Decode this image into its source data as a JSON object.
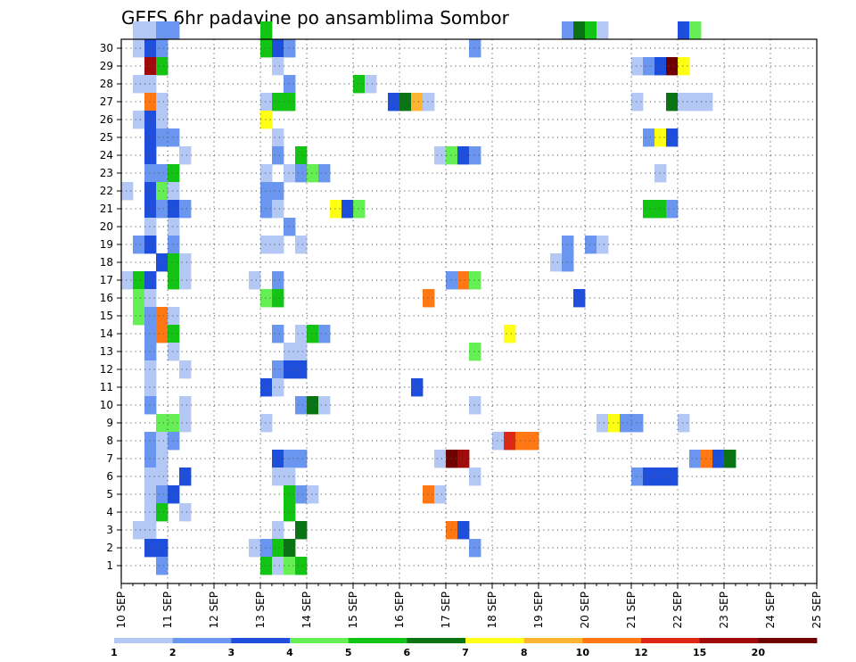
{
  "chart_data": {
    "type": "heatmap",
    "title": "GEFS 6hr padavine po ansamblima Sombor",
    "xlabel": "",
    "ylabel": "",
    "x_ticks": [
      "10 SEP",
      "11 SEP",
      "12 SEP",
      "13 SEP",
      "14 SEP",
      "15 SEP",
      "16 SEP",
      "17 SEP",
      "18 SEP",
      "19 SEP",
      "20 SEP",
      "21 SEP",
      "22 SEP",
      "23 SEP",
      "24 SEP",
      "25 SEP"
    ],
    "y_ticks": [
      1,
      2,
      3,
      4,
      5,
      6,
      7,
      8,
      9,
      10,
      11,
      12,
      13,
      14,
      15,
      16,
      17,
      18,
      19,
      20,
      21,
      22,
      23,
      24,
      25,
      26,
      27,
      28,
      29,
      30
    ],
    "time_step_hours": 6,
    "grid": true,
    "colorbar": {
      "labels": [
        "1",
        "2",
        "3",
        "4",
        "5",
        "6",
        "7",
        "8",
        "10",
        "12",
        "15",
        "20"
      ],
      "colors": [
        "#b4c8f5",
        "#6a96f0",
        "#1e4fdc",
        "#66ee55",
        "#14c414",
        "#0a7314",
        "#ffff14",
        "#ffb432",
        "#ff7814",
        "#dc2814",
        "#a00a0a",
        "#6e0000"
      ]
    },
    "cells": [
      [
        30,
        1,
        0
      ],
      [
        30,
        2,
        0
      ],
      [
        30,
        3,
        1
      ],
      [
        30,
        4,
        1
      ],
      [
        30,
        12,
        4
      ],
      [
        30,
        38,
        1
      ],
      [
        30,
        39,
        5
      ],
      [
        30,
        40,
        4
      ],
      [
        30,
        41,
        0
      ],
      [
        30,
        48,
        2
      ],
      [
        30,
        49,
        3
      ],
      [
        29,
        1,
        0
      ],
      [
        29,
        2,
        2
      ],
      [
        29,
        3,
        1
      ],
      [
        29,
        12,
        4
      ],
      [
        29,
        13,
        2
      ],
      [
        29,
        14,
        1
      ],
      [
        29,
        30,
        1
      ],
      [
        28,
        2,
        10
      ],
      [
        28,
        3,
        4
      ],
      [
        28,
        13,
        0
      ],
      [
        28,
        44,
        0
      ],
      [
        28,
        45,
        1
      ],
      [
        28,
        46,
        2
      ],
      [
        28,
        47,
        11
      ],
      [
        28,
        48,
        6
      ],
      [
        27,
        1,
        0
      ],
      [
        27,
        2,
        0
      ],
      [
        27,
        14,
        1
      ],
      [
        27,
        20,
        4
      ],
      [
        27,
        21,
        0
      ],
      [
        26,
        2,
        8
      ],
      [
        26,
        3,
        0
      ],
      [
        26,
        12,
        0
      ],
      [
        26,
        13,
        4
      ],
      [
        26,
        14,
        4
      ],
      [
        26,
        23,
        2
      ],
      [
        26,
        24,
        5
      ],
      [
        26,
        25,
        7
      ],
      [
        26,
        26,
        0
      ],
      [
        26,
        44,
        0
      ],
      [
        26,
        47,
        5
      ],
      [
        26,
        48,
        0
      ],
      [
        26,
        49,
        0
      ],
      [
        26,
        50,
        0
      ],
      [
        25,
        1,
        0
      ],
      [
        25,
        2,
        2
      ],
      [
        25,
        3,
        0
      ],
      [
        25,
        12,
        6
      ],
      [
        24,
        2,
        2
      ],
      [
        24,
        3,
        1
      ],
      [
        24,
        4,
        1
      ],
      [
        24,
        13,
        0
      ],
      [
        24,
        45,
        1
      ],
      [
        24,
        46,
        6
      ],
      [
        24,
        47,
        2
      ],
      [
        23,
        2,
        2
      ],
      [
        23,
        5,
        0
      ],
      [
        23,
        13,
        1
      ],
      [
        23,
        15,
        4
      ],
      [
        23,
        27,
        0
      ],
      [
        23,
        28,
        3
      ],
      [
        23,
        29,
        2
      ],
      [
        23,
        30,
        1
      ],
      [
        22,
        2,
        1
      ],
      [
        22,
        3,
        1
      ],
      [
        22,
        4,
        4
      ],
      [
        22,
        12,
        0
      ],
      [
        22,
        14,
        0
      ],
      [
        22,
        15,
        1
      ],
      [
        22,
        16,
        3
      ],
      [
        22,
        17,
        1
      ],
      [
        22,
        46,
        0
      ],
      [
        21,
        0,
        0
      ],
      [
        21,
        2,
        2
      ],
      [
        21,
        3,
        3
      ],
      [
        21,
        4,
        0
      ],
      [
        21,
        12,
        1
      ],
      [
        21,
        13,
        1
      ],
      [
        20,
        2,
        2
      ],
      [
        20,
        3,
        1
      ],
      [
        20,
        4,
        2
      ],
      [
        20,
        5,
        1
      ],
      [
        20,
        12,
        1
      ],
      [
        20,
        13,
        0
      ],
      [
        20,
        18,
        6
      ],
      [
        20,
        19,
        2
      ],
      [
        20,
        20,
        3
      ],
      [
        20,
        45,
        4
      ],
      [
        20,
        46,
        4
      ],
      [
        20,
        47,
        1
      ],
      [
        19,
        2,
        0
      ],
      [
        19,
        4,
        0
      ],
      [
        19,
        14,
        1
      ],
      [
        18,
        1,
        1
      ],
      [
        18,
        2,
        2
      ],
      [
        18,
        4,
        1
      ],
      [
        18,
        12,
        0
      ],
      [
        18,
        13,
        0
      ],
      [
        18,
        15,
        0
      ],
      [
        18,
        38,
        1
      ],
      [
        18,
        40,
        1
      ],
      [
        18,
        41,
        0
      ],
      [
        17,
        3,
        2
      ],
      [
        17,
        4,
        4
      ],
      [
        17,
        5,
        0
      ],
      [
        17,
        37,
        0
      ],
      [
        17,
        38,
        1
      ],
      [
        16,
        0,
        0
      ],
      [
        16,
        1,
        4
      ],
      [
        16,
        2,
        2
      ],
      [
        16,
        4,
        4
      ],
      [
        16,
        5,
        0
      ],
      [
        16,
        11,
        0
      ],
      [
        16,
        13,
        1
      ],
      [
        16,
        28,
        1
      ],
      [
        16,
        29,
        8
      ],
      [
        16,
        30,
        3
      ],
      [
        15,
        1,
        3
      ],
      [
        15,
        2,
        0
      ],
      [
        15,
        12,
        3
      ],
      [
        15,
        13,
        4
      ],
      [
        15,
        26,
        8
      ],
      [
        15,
        39,
        2
      ],
      [
        14,
        1,
        3
      ],
      [
        14,
        2,
        1
      ],
      [
        14,
        3,
        8
      ],
      [
        14,
        4,
        0
      ],
      [
        13,
        2,
        1
      ],
      [
        13,
        3,
        8
      ],
      [
        13,
        4,
        4
      ],
      [
        13,
        13,
        1
      ],
      [
        13,
        15,
        0
      ],
      [
        13,
        16,
        4
      ],
      [
        13,
        17,
        1
      ],
      [
        13,
        33,
        6
      ],
      [
        12,
        2,
        1
      ],
      [
        12,
        4,
        0
      ],
      [
        12,
        14,
        0
      ],
      [
        12,
        15,
        0
      ],
      [
        12,
        30,
        3
      ],
      [
        11,
        2,
        0
      ],
      [
        11,
        5,
        0
      ],
      [
        11,
        13,
        1
      ],
      [
        11,
        14,
        2
      ],
      [
        11,
        15,
        2
      ],
      [
        10,
        2,
        0
      ],
      [
        10,
        12,
        2
      ],
      [
        10,
        13,
        0
      ],
      [
        10,
        25,
        2
      ],
      [
        9,
        2,
        1
      ],
      [
        9,
        5,
        0
      ],
      [
        9,
        15,
        1
      ],
      [
        9,
        16,
        5
      ],
      [
        9,
        17,
        0
      ],
      [
        9,
        30,
        0
      ],
      [
        8,
        3,
        3
      ],
      [
        8,
        4,
        3
      ],
      [
        8,
        5,
        0
      ],
      [
        8,
        12,
        0
      ],
      [
        8,
        41,
        0
      ],
      [
        8,
        42,
        6
      ],
      [
        8,
        43,
        1
      ],
      [
        8,
        44,
        1
      ],
      [
        8,
        48,
        0
      ],
      [
        7,
        2,
        1
      ],
      [
        7,
        3,
        0
      ],
      [
        7,
        4,
        1
      ],
      [
        7,
        32,
        0
      ],
      [
        7,
        33,
        9
      ],
      [
        7,
        34,
        8
      ],
      [
        7,
        35,
        8
      ],
      [
        6,
        2,
        1
      ],
      [
        6,
        3,
        0
      ],
      [
        6,
        13,
        2
      ],
      [
        6,
        14,
        1
      ],
      [
        6,
        15,
        1
      ],
      [
        6,
        27,
        0
      ],
      [
        6,
        28,
        11
      ],
      [
        6,
        29,
        10
      ],
      [
        6,
        49,
        1
      ],
      [
        6,
        50,
        8
      ],
      [
        6,
        51,
        2
      ],
      [
        6,
        52,
        5
      ],
      [
        5,
        2,
        0
      ],
      [
        5,
        3,
        0
      ],
      [
        5,
        5,
        2
      ],
      [
        5,
        13,
        0
      ],
      [
        5,
        14,
        0
      ],
      [
        5,
        30,
        0
      ],
      [
        5,
        44,
        1
      ],
      [
        5,
        45,
        2
      ],
      [
        5,
        46,
        2
      ],
      [
        5,
        47,
        2
      ],
      [
        4,
        2,
        0
      ],
      [
        4,
        3,
        1
      ],
      [
        4,
        4,
        2
      ],
      [
        4,
        14,
        4
      ],
      [
        4,
        15,
        1
      ],
      [
        4,
        16,
        0
      ],
      [
        4,
        26,
        8
      ],
      [
        4,
        27,
        0
      ],
      [
        3,
        2,
        0
      ],
      [
        3,
        3,
        4
      ],
      [
        3,
        5,
        0
      ],
      [
        3,
        14,
        4
      ],
      [
        2,
        1,
        0
      ],
      [
        2,
        2,
        0
      ],
      [
        2,
        13,
        0
      ],
      [
        2,
        15,
        5
      ],
      [
        2,
        28,
        8
      ],
      [
        2,
        29,
        2
      ],
      [
        1,
        2,
        2
      ],
      [
        1,
        3,
        2
      ],
      [
        1,
        11,
        0
      ],
      [
        1,
        12,
        1
      ],
      [
        1,
        13,
        4
      ],
      [
        1,
        14,
        5
      ],
      [
        1,
        30,
        1
      ],
      [
        0,
        3,
        1
      ],
      [
        0,
        12,
        4
      ],
      [
        0,
        13,
        0
      ],
      [
        0,
        14,
        3
      ],
      [
        0,
        15,
        4
      ]
    ]
  }
}
